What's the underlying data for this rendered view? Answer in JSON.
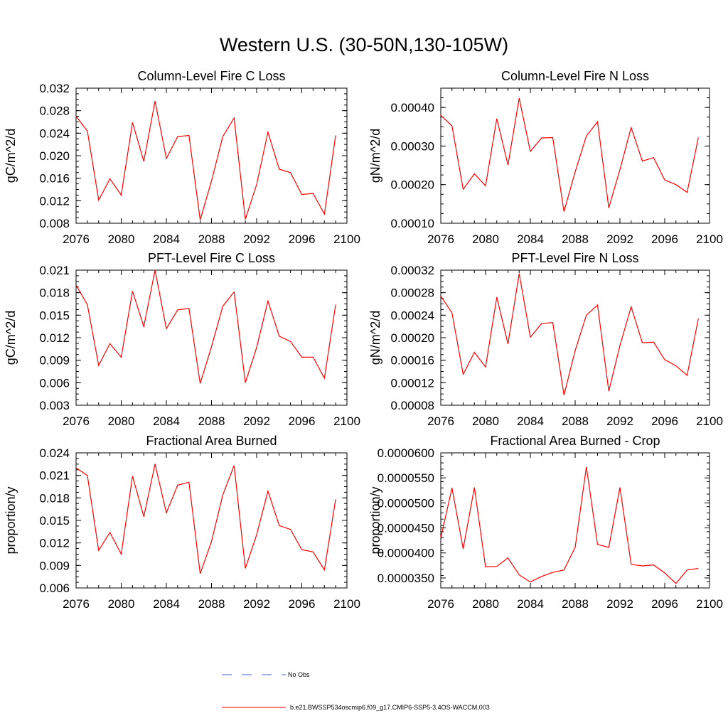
{
  "page_title": "Western U.S. (30-50N,130-105W)",
  "legend": {
    "entries": [
      {
        "label": "No Obs",
        "color": "#4a5fd0",
        "style": "dashed"
      },
      {
        "label": "b.e21.BWSSP534oscmip6.f09_g17.CMIP6-SSP5-3.4OS-WACCM.003",
        "color": "#ff0000",
        "style": "solid"
      }
    ]
  },
  "chart_data": [
    {
      "type": "line",
      "title": "Column-Level Fire C Loss",
      "ylabel": "gC/m^2/d",
      "xlabel": "",
      "xlim": [
        2076,
        2100
      ],
      "ylim": [
        0.008,
        0.032
      ],
      "xticks": [
        "2076",
        "2080",
        "2084",
        "2088",
        "2092",
        "2096",
        "2100"
      ],
      "yticks": [
        "0.008",
        "0.012",
        "0.016",
        "0.020",
        "0.024",
        "0.028",
        "0.032"
      ],
      "x": [
        2076,
        2077,
        2078,
        2079,
        2080,
        2081,
        2082,
        2083,
        2084,
        2085,
        2086,
        2087,
        2088,
        2089,
        2090,
        2091,
        2092,
        2093,
        2094,
        2095,
        2096,
        2097,
        2098,
        2099
      ],
      "series": [
        {
          "values": [
            0.027,
            0.0244,
            0.0121,
            0.0159,
            0.013,
            0.0259,
            0.019,
            0.0297,
            0.0195,
            0.0234,
            0.0236,
            0.0086,
            0.0155,
            0.0234,
            0.0267,
            0.0087,
            0.0149,
            0.0242,
            0.0176,
            0.017,
            0.0131,
            0.0133,
            0.0096,
            0.0236
          ],
          "color": "#ff0000"
        }
      ]
    },
    {
      "type": "line",
      "title": "Column-Level Fire N Loss",
      "ylabel": "gN/m^2/d",
      "xlabel": "",
      "xlim": [
        2076,
        2100
      ],
      "ylim": [
        0.0001,
        0.00045
      ],
      "xticks": [
        "2076",
        "2080",
        "2084",
        "2088",
        "2092",
        "2096",
        "2100"
      ],
      "yticks": [
        "0.00010",
        "0.00020",
        "0.00030",
        "0.00040"
      ],
      "x": [
        2076,
        2077,
        2078,
        2079,
        2080,
        2081,
        2082,
        2083,
        2084,
        2085,
        2086,
        2087,
        2088,
        2089,
        2090,
        2091,
        2092,
        2093,
        2094,
        2095,
        2096,
        2097,
        2098,
        2099
      ],
      "series": [
        {
          "values": [
            0.00038,
            0.000352,
            0.000188,
            0.000228,
            0.000197,
            0.000371,
            0.000251,
            0.000424,
            0.000286,
            0.000321,
            0.000322,
            0.00013,
            0.000233,
            0.000326,
            0.000363,
            0.00014,
            0.000239,
            0.000348,
            0.000261,
            0.00027,
            0.000212,
            0.0002,
            0.00018,
            0.000322
          ],
          "color": "#ff0000"
        }
      ]
    },
    {
      "type": "line",
      "title": "PFT-Level Fire C Loss",
      "ylabel": "gC/m^2/d",
      "xlabel": "",
      "xlim": [
        2076,
        2100
      ],
      "ylim": [
        0.003,
        0.021
      ],
      "xticks": [
        "2076",
        "2080",
        "2084",
        "2088",
        "2092",
        "2096",
        "2100"
      ],
      "yticks": [
        "0.003",
        "0.006",
        "0.009",
        "0.012",
        "0.015",
        "0.018",
        "0.021"
      ],
      "x": [
        2076,
        2077,
        2078,
        2079,
        2080,
        2081,
        2082,
        2083,
        2084,
        2085,
        2086,
        2087,
        2088,
        2089,
        2090,
        2091,
        2092,
        2093,
        2094,
        2095,
        2096,
        2097,
        2098,
        2099
      ],
      "series": [
        {
          "values": [
            0.019,
            0.0164,
            0.0083,
            0.0112,
            0.0094,
            0.0182,
            0.0135,
            0.021,
            0.0132,
            0.0157,
            0.0159,
            0.0059,
            0.0108,
            0.0162,
            0.0181,
            0.006,
            0.0107,
            0.0169,
            0.0122,
            0.0115,
            0.0094,
            0.0094,
            0.0066,
            0.0164
          ],
          "color": "#ff0000"
        }
      ]
    },
    {
      "type": "line",
      "title": "PFT-Level Fire N Loss",
      "ylabel": "gN/m^2/d",
      "xlabel": "",
      "xlim": [
        2076,
        2100
      ],
      "ylim": [
        8e-05,
        0.00032
      ],
      "xticks": [
        "2076",
        "2080",
        "2084",
        "2088",
        "2092",
        "2096",
        "2100"
      ],
      "yticks": [
        "0.00008",
        "0.00012",
        "0.00016",
        "0.00020",
        "0.00024",
        "0.00028",
        "0.00032"
      ],
      "x": [
        2076,
        2077,
        2078,
        2079,
        2080,
        2081,
        2082,
        2083,
        2084,
        2085,
        2086,
        2087,
        2088,
        2089,
        2090,
        2091,
        2092,
        2093,
        2094,
        2095,
        2096,
        2097,
        2098,
        2099
      ],
      "series": [
        {
          "values": [
            0.000274,
            0.000244,
            0.000135,
            0.000174,
            0.000148,
            0.000272,
            0.000189,
            0.000314,
            0.000201,
            0.000225,
            0.000227,
            9.8e-05,
            0.000177,
            0.00024,
            0.000258,
            0.000105,
            0.000186,
            0.000255,
            0.000191,
            0.000192,
            0.000161,
            0.00015,
            0.000133,
            0.000234
          ],
          "color": "#ff0000"
        }
      ]
    },
    {
      "type": "line",
      "title": "Fractional Area Burned",
      "ylabel": "proportion/y",
      "xlabel": "",
      "xlim": [
        2076,
        2100
      ],
      "ylim": [
        0.006,
        0.024
      ],
      "xticks": [
        "2076",
        "2080",
        "2084",
        "2088",
        "2092",
        "2096",
        "2100"
      ],
      "yticks": [
        "0.006",
        "0.009",
        "0.012",
        "0.015",
        "0.018",
        "0.021",
        "0.024"
      ],
      "x": [
        2076,
        2077,
        2078,
        2079,
        2080,
        2081,
        2082,
        2083,
        2084,
        2085,
        2086,
        2087,
        2088,
        2089,
        2090,
        2091,
        2092,
        2093,
        2094,
        2095,
        2096,
        2097,
        2098,
        2099
      ],
      "series": [
        {
          "values": [
            0.022,
            0.021,
            0.011,
            0.0134,
            0.0105,
            0.0209,
            0.0155,
            0.0225,
            0.016,
            0.0197,
            0.0201,
            0.0079,
            0.0122,
            0.0184,
            0.0223,
            0.0086,
            0.0131,
            0.0189,
            0.0143,
            0.0138,
            0.0111,
            0.0108,
            0.0084,
            0.0178
          ],
          "color": "#ff0000"
        }
      ]
    },
    {
      "type": "line",
      "title": "Fractional Area Burned - Crop",
      "ylabel": "proportion/y",
      "xlabel": "",
      "xlim": [
        2076,
        2100
      ],
      "ylim": [
        3.3e-05,
        6e-05
      ],
      "xticks": [
        "2076",
        "2080",
        "2084",
        "2088",
        "2092",
        "2096",
        "2100"
      ],
      "yticks": [
        "0.0000350",
        "0.0000400",
        "0.0000450",
        "0.0000500",
        "0.0000550",
        "0.0000600"
      ],
      "x": [
        2076,
        2077,
        2078,
        2079,
        2080,
        2081,
        2082,
        2083,
        2084,
        2085,
        2086,
        2087,
        2088,
        2089,
        2090,
        2091,
        2092,
        2093,
        2094,
        2095,
        2096,
        2097,
        2098,
        2099
      ],
      "series": [
        {
          "values": [
            4.3e-05,
            5.3e-05,
            4.08e-05,
            5.31e-05,
            3.72e-05,
            3.73e-05,
            3.9e-05,
            3.56e-05,
            3.42e-05,
            3.53e-05,
            3.61e-05,
            3.66e-05,
            4.11e-05,
            5.72e-05,
            4.17e-05,
            4.11e-05,
            5.31e-05,
            3.77e-05,
            3.74e-05,
            3.76e-05,
            3.6e-05,
            3.39e-05,
            3.66e-05,
            3.69e-05
          ],
          "color": "#ff0000"
        }
      ]
    }
  ]
}
